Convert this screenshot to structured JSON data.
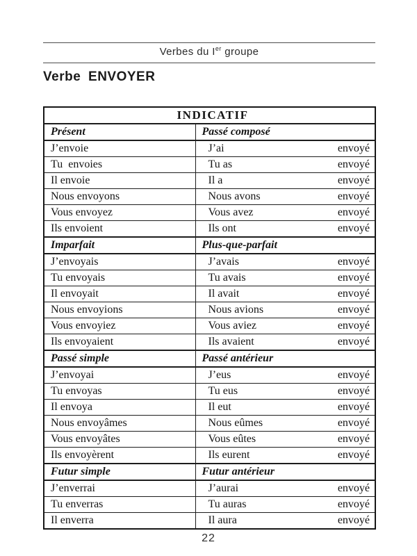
{
  "colors": {
    "text": "#151515",
    "border": "#1c1c1c",
    "rule": "#4c4c4c",
    "background": "#ffffff"
  },
  "header": {
    "running_head_prefix": "Verbes du I",
    "running_head_superscript": "er",
    "running_head_suffix": " groupe"
  },
  "title": "Verbe ENVOYER",
  "footer": {
    "page_number": "22"
  },
  "table": {
    "mood_title": "INDICATIF",
    "sections": [
      {
        "left_header": "Présent",
        "right_header": "Passé composé",
        "rows": [
          {
            "left": "J’envoie",
            "right_aux": "J’ai",
            "right_participle": "envoyé"
          },
          {
            "left": "Tu  envoies",
            "right_aux": "Tu as",
            "right_participle": "envoyé"
          },
          {
            "left": "Il envoie",
            "right_aux": "Il a",
            "right_participle": "envoyé"
          },
          {
            "left": "Nous envoyons",
            "right_aux": "Nous avons",
            "right_participle": "envoyé"
          },
          {
            "left": "Vous envoyez",
            "right_aux": "Vous avez",
            "right_participle": "envoyé"
          },
          {
            "left": "Ils envoient",
            "right_aux": "Ils ont",
            "right_participle": "envoyé"
          }
        ]
      },
      {
        "left_header": "Imparfait",
        "right_header": "Plus-que-parfait",
        "rows": [
          {
            "left": "J’envoyais",
            "right_aux": "J’avais",
            "right_participle": "envoyé"
          },
          {
            "left": "Tu envoyais",
            "right_aux": "Tu avais",
            "right_participle": "envoyé"
          },
          {
            "left": "Il envoyait",
            "right_aux": "Il avait",
            "right_participle": "envoyé"
          },
          {
            "left": "Nous envoyions",
            "right_aux": "Nous avions",
            "right_participle": "envoyé"
          },
          {
            "left": "Vous envoyiez",
            "right_aux": "Vous aviez",
            "right_participle": "envoyé"
          },
          {
            "left": "Ils envoyaient",
            "right_aux": "Ils avaient",
            "right_participle": "envoyé"
          }
        ]
      },
      {
        "left_header": "Passé simple",
        "right_header": "Passé antérieur",
        "rows": [
          {
            "left": "J’envoyai",
            "right_aux": "J’eus",
            "right_participle": "envoyé"
          },
          {
            "left": "Tu envoyas",
            "right_aux": "Tu eus",
            "right_participle": "envoyé"
          },
          {
            "left": "Il envoya",
            "right_aux": "Il eut",
            "right_participle": "envoyé"
          },
          {
            "left": "Nous envoyâmes",
            "right_aux": "Nous eûmes",
            "right_participle": "envoyé"
          },
          {
            "left": "Vous envoyâtes",
            "right_aux": "Vous eûtes",
            "right_participle": "envoyé"
          },
          {
            "left": "Ils envoyèrent",
            "right_aux": "Ils eurent",
            "right_participle": "envoyé"
          }
        ]
      },
      {
        "left_header": "Futur simple",
        "right_header": "Futur antérieur",
        "rows": [
          {
            "left": "J’enverrai",
            "right_aux": "J’aurai",
            "right_participle": "envoyé"
          },
          {
            "left": "Tu enverras",
            "right_aux": "Tu auras",
            "right_participle": "envoyé"
          },
          {
            "left": "Il enverra",
            "right_aux": "Il aura",
            "right_participle": "envoyé"
          }
        ]
      }
    ]
  }
}
